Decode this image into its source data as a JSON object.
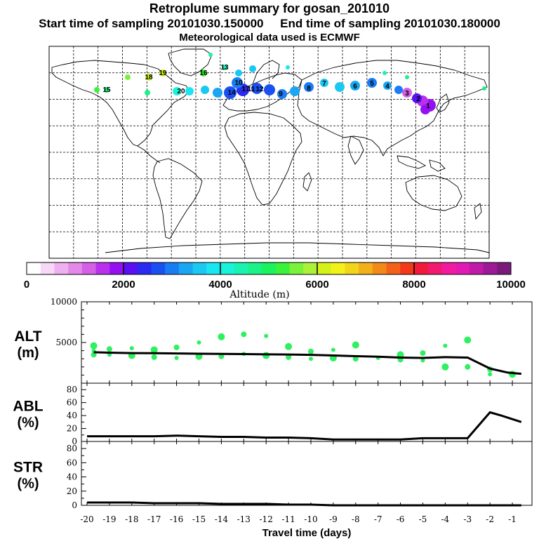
{
  "header": {
    "title": "Retroplume summary for gosan_201010",
    "sampling_line": "Start time of sampling 20101030.150000     End time of sampling 20101030.180000",
    "met_line": "Meteorological data used is ECMWF"
  },
  "map": {
    "plume_labels": [
      "20",
      "14",
      "17",
      "12",
      "11",
      "10",
      "9",
      "8",
      "7",
      "6",
      "5",
      "4",
      "3",
      "2",
      "1",
      "19",
      "18",
      "16",
      "15",
      "13"
    ]
  },
  "colorbar": {
    "ticks": [
      "0",
      "2000",
      "4000",
      "6000",
      "8000",
      "10000"
    ],
    "label": "Altitude (m)",
    "colors": [
      "#ffffff",
      "#f7d9f7",
      "#efb0ef",
      "#e38ae8",
      "#d460e6",
      "#b931ea",
      "#9410f2",
      "#5a10f2",
      "#2a2af0",
      "#1a50f2",
      "#1a7cf2",
      "#1aa6f2",
      "#1ac8f2",
      "#1ae6f2",
      "#1af2da",
      "#1af2b0",
      "#1af288",
      "#1af25e",
      "#3af23a",
      "#7af23a",
      "#aaf23a",
      "#d4f21a",
      "#f2f21a",
      "#f2d41a",
      "#f2b01a",
      "#f28a1a",
      "#f2621a",
      "#f23a1a",
      "#f21a3a",
      "#f21a6e",
      "#f21a9e",
      "#e21ab4",
      "#c01aa8",
      "#9c1a96",
      "#7a1a7a"
    ]
  },
  "chart_data": [
    {
      "type": "line",
      "name": "ALT",
      "ylabel_line1": "ALT",
      "ylabel_line2": "(m)",
      "ylim": [
        0,
        10000
      ],
      "ytick_labels": [
        "5000",
        "10000"
      ],
      "x": [
        -19.7,
        -19,
        -18,
        -17,
        -16,
        -15,
        -14,
        -13,
        -12,
        -11,
        -10,
        -9,
        -8,
        -7,
        -6,
        -5,
        -4,
        -3,
        -2,
        -1.2,
        -0.6
      ],
      "series": [
        {
          "name": "mean altitude",
          "values": [
            3800,
            3750,
            3700,
            3680,
            3650,
            3620,
            3600,
            3580,
            3550,
            3520,
            3480,
            3400,
            3320,
            3250,
            3150,
            3100,
            3200,
            3150,
            1800,
            1300,
            1150
          ]
        }
      ],
      "scatter": [
        {
          "x": -19.7,
          "y": 4000
        },
        {
          "x": -19.7,
          "y": 3500
        },
        {
          "x": -19.7,
          "y": 4600
        },
        {
          "x": -19,
          "y": 3500
        },
        {
          "x": -19,
          "y": 4200
        },
        {
          "x": -18,
          "y": 3400
        },
        {
          "x": -18,
          "y": 4300
        },
        {
          "x": -17,
          "y": 3200
        },
        {
          "x": -17,
          "y": 4100
        },
        {
          "x": -16,
          "y": 3100
        },
        {
          "x": -16,
          "y": 4400
        },
        {
          "x": -15,
          "y": 3300
        },
        {
          "x": -15,
          "y": 5000
        },
        {
          "x": -14,
          "y": 3300
        },
        {
          "x": -14,
          "y": 5700
        },
        {
          "x": -13,
          "y": 3600
        },
        {
          "x": -13,
          "y": 6000
        },
        {
          "x": -12,
          "y": 3400
        },
        {
          "x": -12,
          "y": 5800
        },
        {
          "x": -11,
          "y": 3200
        },
        {
          "x": -11,
          "y": 4500
        },
        {
          "x": -10,
          "y": 3000
        },
        {
          "x": -10,
          "y": 3900
        },
        {
          "x": -9,
          "y": 3100
        },
        {
          "x": -9,
          "y": 4100
        },
        {
          "x": -8,
          "y": 3000
        },
        {
          "x": -8,
          "y": 4700
        },
        {
          "x": -7,
          "y": 3100
        },
        {
          "x": -6,
          "y": 2900
        },
        {
          "x": -6,
          "y": 3500
        },
        {
          "x": -5,
          "y": 2800
        },
        {
          "x": -5,
          "y": 3700
        },
        {
          "x": -4,
          "y": 2000
        },
        {
          "x": -4,
          "y": 4600
        },
        {
          "x": -3,
          "y": 2000
        },
        {
          "x": -3,
          "y": 5300
        },
        {
          "x": -2,
          "y": 1100
        },
        {
          "x": -2,
          "y": 1700
        },
        {
          "x": -1,
          "y": 1100
        }
      ],
      "title": "",
      "xlabel": ""
    },
    {
      "type": "line",
      "name": "ABL",
      "ylabel_line1": "ABL",
      "ylabel_line2": "(%)",
      "ylim": [
        0,
        90
      ],
      "ytick_labels": [
        "0",
        "20",
        "40",
        "60",
        "80"
      ],
      "x": [
        -20,
        -19,
        -18,
        -17,
        -16,
        -15,
        -14,
        -13,
        -12,
        -11,
        -10,
        -9,
        -8,
        -7,
        -6,
        -5,
        -4,
        -3,
        -2,
        -1.5,
        -0.6
      ],
      "series": [
        {
          "name": "ABL fraction",
          "values": [
            8,
            8,
            8,
            8,
            9,
            8,
            7,
            7,
            6,
            6,
            5,
            3,
            3,
            3,
            3,
            5,
            5,
            5,
            45,
            40,
            30
          ]
        }
      ],
      "title": "",
      "xlabel": ""
    },
    {
      "type": "line",
      "name": "STR",
      "ylabel_line1": "STR",
      "ylabel_line2": "(%)",
      "ylim": [
        0,
        90
      ],
      "ytick_labels": [
        "0",
        "20",
        "40",
        "60",
        "80"
      ],
      "x": [
        -20,
        -19,
        -18,
        -17,
        -16,
        -15,
        -14,
        -13,
        -12,
        -11,
        -10,
        -9,
        -8,
        -7,
        -6,
        -5,
        -4,
        -3,
        -2,
        -1,
        -0.6
      ],
      "series": [
        {
          "name": "stratospheric fraction",
          "values": [
            4,
            4,
            4,
            3,
            3,
            3,
            2,
            2,
            2,
            1,
            1,
            0,
            0,
            0,
            0,
            0,
            0,
            0,
            0,
            0,
            0
          ]
        }
      ],
      "xlim": [
        -20,
        -0.5
      ],
      "xtick_labels": [
        "-20",
        "-19",
        "-18",
        "-17",
        "-16",
        "-15",
        "-14",
        "-13",
        "-12",
        "-11",
        "-10",
        "-9",
        "-8",
        "-7",
        "-6",
        "-5",
        "-4",
        "-3",
        "-2",
        "-1"
      ],
      "xlabel": "Travel time (days)",
      "title": ""
    }
  ]
}
